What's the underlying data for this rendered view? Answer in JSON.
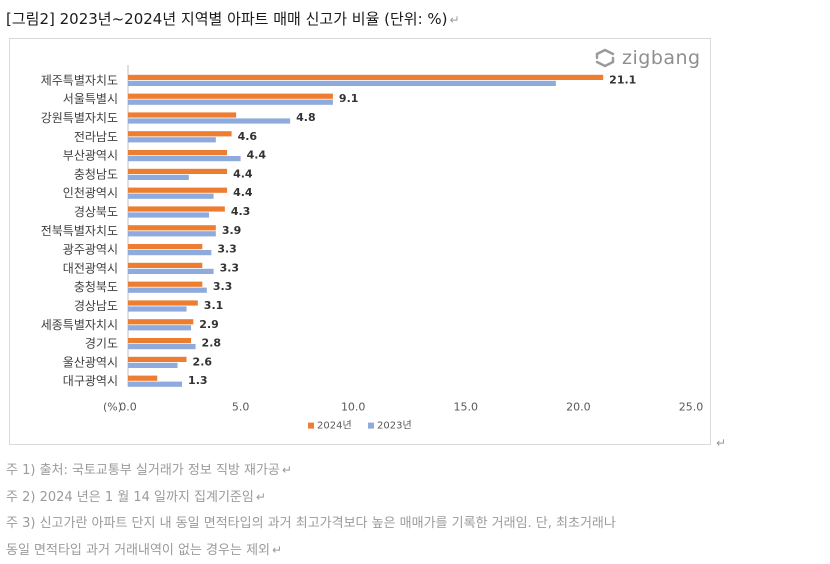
{
  "title": "[그림2] 2023년~2024년 지역별 아파트 매매 신고가 비율 (단위: %)",
  "paragraph_mark": "↵",
  "logo": {
    "text": "zigbang",
    "icon": "zigbang-logo-icon"
  },
  "chart_data": {
    "type": "bar",
    "orientation": "horizontal",
    "categories": [
      "제주특별자치도",
      "서울특별시",
      "강원특별자치도",
      "전라남도",
      "부산광역시",
      "충청남도",
      "인천광역시",
      "경상북도",
      "전북특별자치도",
      "광주광역시",
      "대전광역시",
      "충청북도",
      "경상남도",
      "세종특별자치시",
      "경기도",
      "울산광역시",
      "대구광역시"
    ],
    "series": [
      {
        "name": "2024년",
        "color": "#ED7D31",
        "values": [
          21.1,
          9.1,
          4.8,
          4.6,
          4.4,
          4.4,
          4.4,
          4.3,
          3.9,
          3.3,
          3.3,
          3.3,
          3.1,
          2.9,
          2.8,
          2.6,
          1.3
        ]
      },
      {
        "name": "2023년",
        "color": "#8FAADC",
        "values": [
          19.0,
          9.1,
          7.2,
          3.9,
          5.0,
          2.7,
          3.8,
          3.6,
          3.9,
          3.7,
          3.8,
          3.5,
          2.6,
          2.8,
          3.0,
          2.2,
          2.4
        ]
      }
    ],
    "data_labels": [
      "21.1",
      "9.1",
      "4.8",
      "4.6",
      "4.4",
      "4.4",
      "4.4",
      "4.3",
      "3.9",
      "3.3",
      "3.3",
      "3.3",
      "3.1",
      "2.9",
      "2.8",
      "2.6",
      "1.3"
    ],
    "xaxis": {
      "unit_label": "(%)",
      "ticks": [
        "0.0",
        "5.0",
        "10.0",
        "15.0",
        "20.0",
        "25.0"
      ],
      "range": [
        0,
        25
      ]
    },
    "grid": false,
    "legend": "bottom"
  },
  "footnotes": [
    "주 1) 출처: 국토교통부 실거래가 정보 직방 재가공",
    "주 2) 2024 년은 1 월 14 일까지 집계기준임",
    "주 3) 신고가란 아파트 단지 내 동일 면적타입의 과거 최고가격보다 높은 매매가를 기록한 거래임. 단, 최초거래나",
    "동일 면적타입 과거 거래내역이 없는 경우는 제외"
  ]
}
